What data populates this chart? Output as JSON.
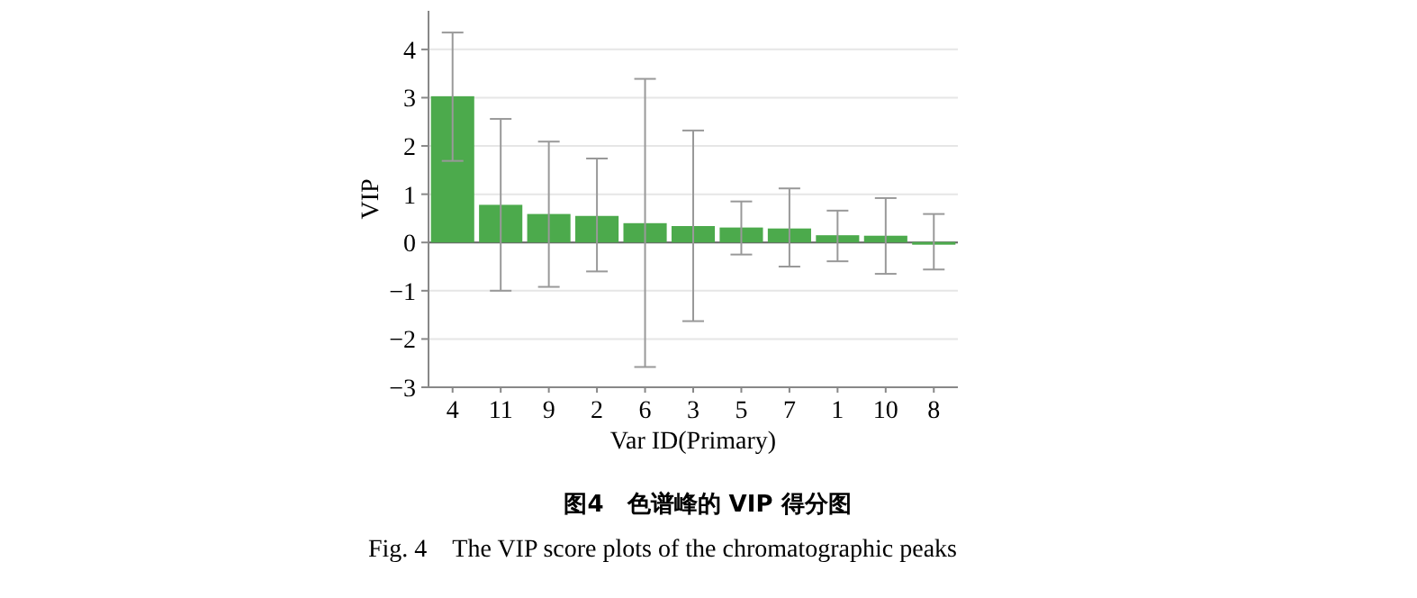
{
  "chart_data": {
    "type": "bar",
    "title": "图4　色谱峰的 VIP 得分图",
    "subtitle": "Fig. 4　The VIP score plots of the chromatographic peaks",
    "xlabel": "Var ID(Primary)",
    "ylabel": "VIP",
    "categories": [
      "4",
      "11",
      "9",
      "2",
      "6",
      "3",
      "5",
      "7",
      "1",
      "10",
      "8"
    ],
    "values": [
      3.03,
      0.78,
      0.59,
      0.55,
      0.4,
      0.34,
      0.31,
      0.29,
      0.15,
      0.14,
      0.01
    ],
    "errors": [
      [
        1.69,
        4.35
      ],
      [
        -1.0,
        2.56
      ],
      [
        -0.92,
        2.09
      ],
      [
        -0.6,
        1.74
      ],
      [
        -2.58,
        3.39
      ],
      [
        -1.63,
        2.32
      ],
      [
        -0.25,
        0.85
      ],
      [
        -0.5,
        1.12
      ],
      [
        -0.39,
        0.66
      ],
      [
        -0.65,
        0.92
      ],
      [
        -0.56,
        0.59
      ]
    ],
    "color": "#4caa4c",
    "ylim": [
      -3,
      4.8
    ],
    "yticks": [
      -3,
      -2,
      -1,
      0,
      1,
      2,
      3,
      4
    ],
    "grid": "y"
  }
}
